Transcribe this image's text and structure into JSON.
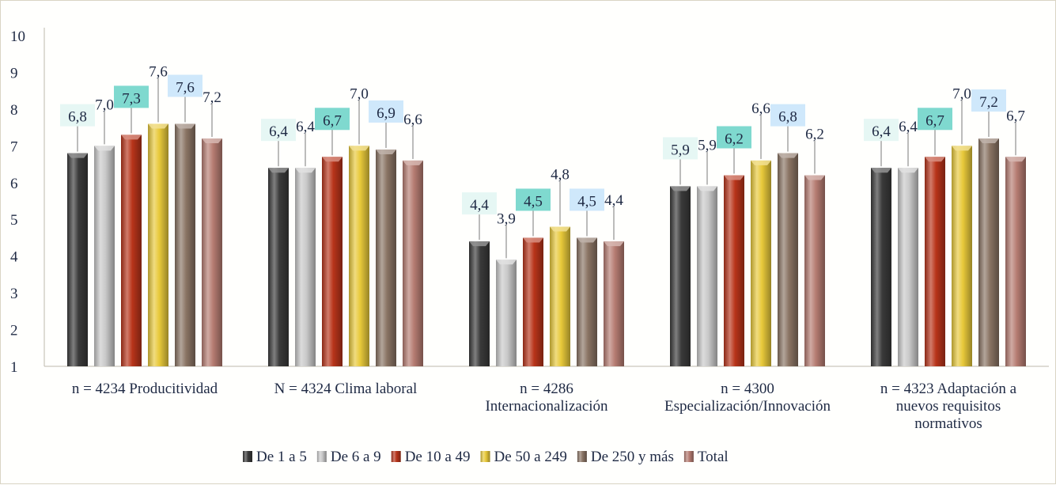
{
  "chart_data": {
    "type": "bar",
    "categories": [
      [
        "n = 4234 Producitividad"
      ],
      [
        "N = 4324 Clima laboral"
      ],
      [
        "n = 4286",
        "Internacionalización"
      ],
      [
        "n = 4300",
        "Especialización/Innovación"
      ],
      [
        "n = 4323 Adaptación a",
        "nuevos requisitos",
        "normativos"
      ]
    ],
    "series": [
      {
        "name": "De 1 a 5",
        "color": "#3a3a3a",
        "values": [
          6.8,
          6.4,
          4.4,
          5.9,
          6.4
        ],
        "labels": [
          "6,8",
          "6,4",
          "4,4",
          "5,9",
          "6,4"
        ]
      },
      {
        "name": "De 6 a 9",
        "color": "#c9c9c9",
        "values": [
          7.0,
          6.4,
          3.9,
          5.9,
          6.4
        ],
        "labels": [
          "7,0",
          "6,4",
          "3,9",
          "5,9",
          "6,4"
        ]
      },
      {
        "name": "De 10 a 49",
        "color": "#b8341a",
        "values": [
          7.3,
          6.7,
          4.5,
          6.2,
          6.7
        ],
        "labels": [
          "7,3",
          "6,7",
          "4,5",
          "6,2",
          "6,7"
        ]
      },
      {
        "name": "De 50 a 249",
        "color": "#e8c93a",
        "values": [
          7.6,
          7.0,
          4.8,
          6.6,
          7.0
        ],
        "labels": [
          "7,6",
          "7,0",
          "4,8",
          "6,6",
          "7,0"
        ]
      },
      {
        "name": "De 250 y más",
        "color": "#8a7464",
        "values": [
          7.6,
          6.9,
          4.5,
          6.8,
          7.2
        ],
        "labels": [
          "7,6",
          "6,9",
          "4,5",
          "6,8",
          "7,2"
        ]
      },
      {
        "name": "Total",
        "color": "#b67c72",
        "values": [
          7.2,
          6.6,
          4.4,
          6.2,
          6.7
        ],
        "labels": [
          "7,2",
          "6,6",
          "4,4",
          "6,2",
          "6,7"
        ]
      }
    ],
    "label_fills": [
      "#e6f7f4",
      "",
      "#7fd9cf",
      "",
      "#cfe8fb",
      ""
    ],
    "ylim": [
      1,
      10
    ],
    "yticks": [
      "1",
      "2",
      "3",
      "4",
      "5",
      "6",
      "7",
      "8",
      "9",
      "10"
    ],
    "grid": false,
    "legend_position": "bottom"
  }
}
